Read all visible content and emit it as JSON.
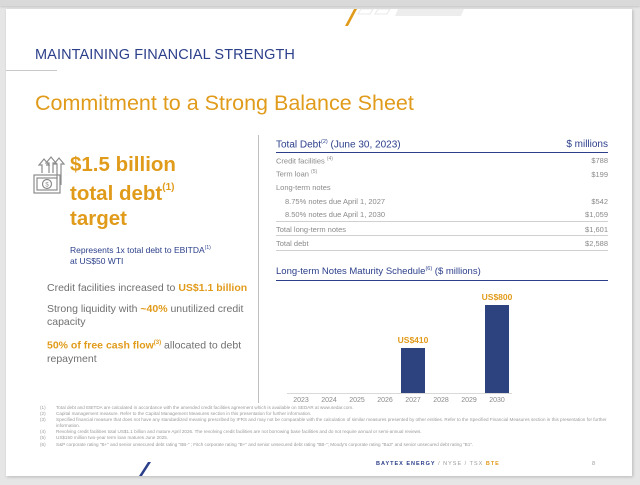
{
  "slide": {
    "section_title": "MAINTAINING  FINANCIAL STRENGTH",
    "main_title": "Commitment to a Strong Balance Sheet",
    "colors": {
      "navy": "#2b3f8a",
      "orange": "#e19b1b",
      "bar": "#2c4380",
      "gray_text": "#707070"
    }
  },
  "highlight": {
    "icon": "money-growth-icon",
    "line1": "$1.5 billion",
    "line2": "total debt",
    "line2_sup": "(1)",
    "line3": "target",
    "sub_text": "Represents 1x total debt to EBITDA",
    "sub_sup": "(1)",
    "sub_text2": "at US$50 WTI"
  },
  "bullets": [
    {
      "pre": "Credit facilities increased to ",
      "hl": "US$1.1 billion",
      "post": ""
    },
    {
      "pre": "Strong liquidity with ",
      "hl": "~40%",
      "post": " unutilized credit capacity"
    },
    {
      "pre": "",
      "hl": "50% of free cash flow",
      "sup": "(3)",
      "post": " allocated to debt repayment"
    }
  ],
  "debt_table": {
    "title": "Total Debt",
    "title_sup": "(2)",
    "title_date": " (June 30, 2023)",
    "unit": "$ millions",
    "rows": [
      {
        "label": "Credit facilities",
        "sup": "(4)",
        "value": "$788"
      },
      {
        "label": "Term loan",
        "sup": "(5)",
        "value": "$199"
      },
      {
        "label": "Long-term notes",
        "sup": "",
        "value": ""
      },
      {
        "label": "8.75% notes due April 1, 2027",
        "sup": "",
        "value": "$542"
      },
      {
        "label": "8.50% notes due April 1, 2030",
        "sup": "",
        "value": "$1,059"
      },
      {
        "label": "Total long-term notes",
        "sup": "",
        "value": "$1,601"
      },
      {
        "label": "Total debt",
        "sup": "",
        "value": "$2,588"
      }
    ]
  },
  "chart_data": {
    "type": "bar",
    "title": "Long-term Notes Maturity Schedule (6) ($ millions)",
    "title_main": "Long-term Notes Maturity Schedule",
    "title_sup": "(6)",
    "title_unit": " ($ millions)",
    "categories": [
      "2023",
      "2024",
      "2025",
      "2026",
      "2027",
      "2028",
      "2029",
      "2030"
    ],
    "values": [
      0,
      0,
      0,
      0,
      410,
      0,
      0,
      800
    ],
    "data_labels": [
      "",
      "",
      "",
      "",
      "US$410",
      "",
      "",
      "US$800"
    ],
    "xlabel": "",
    "ylabel": "",
    "ylim": [
      0,
      800
    ],
    "grid": false,
    "legend": "none"
  },
  "footnotes": [
    {
      "num": "(1)",
      "text": "Total debt and EBITDA are calculated in accordance with the amended credit facilities agreement which is available on SEDAR at www.sedar.com."
    },
    {
      "num": "(2)",
      "text": "Capital management measure. Refer to the Capital Management Measures section in this presentation for further information."
    },
    {
      "num": "(3)",
      "text": "Specified financial measure that does not have any standardized meaning prescribed by IFRS and may not be comparable with the calculation of similar measures presented by other entities. Refer to the Specified Financial Measures section in this presentation for further information."
    },
    {
      "num": "(4)",
      "text": "Revolving credit facilities total US$1.1 billion and mature April 2026. The revolving credit facilities are not borrowing base facilities and do not require annual or semi-annual reviews."
    },
    {
      "num": "(5)",
      "text": "US$150 million two-year term loan matures June 2025."
    },
    {
      "num": "(6)",
      "text": "S&P corporate rating \"B+\" and senior unsecured debt rating \"BB-\" ; Fitch corporate rating \"B+\" and senior unsecured debt rating \"BB-\"; Moody's corporate rating \"Ba3\" and senior unsecured debt rating \"B1\"."
    }
  ],
  "footer": {
    "company": "BAYTEX ENERGY",
    "sep1": " / NYSE / TSX ",
    "ticker": "BTE",
    "page": "8"
  }
}
